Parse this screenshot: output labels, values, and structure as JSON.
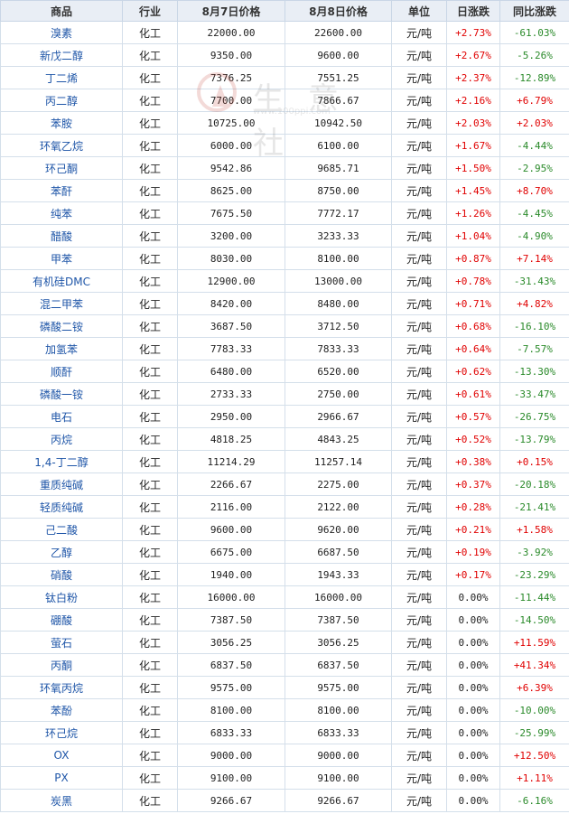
{
  "table": {
    "headers": [
      "商品",
      "行业",
      "8月7日价格",
      "8月8日价格",
      "单位",
      "日涨跌",
      "同比涨跌"
    ],
    "rows": [
      [
        "溴素",
        "化工",
        "22000.00",
        "22600.00",
        "元/吨",
        "+2.73%",
        "-61.03%"
      ],
      [
        "新戊二醇",
        "化工",
        "9350.00",
        "9600.00",
        "元/吨",
        "+2.67%",
        "-5.26%"
      ],
      [
        "丁二烯",
        "化工",
        "7376.25",
        "7551.25",
        "元/吨",
        "+2.37%",
        "-12.89%"
      ],
      [
        "丙二醇",
        "化工",
        "7700.00",
        "7866.67",
        "元/吨",
        "+2.16%",
        "+6.79%"
      ],
      [
        "苯胺",
        "化工",
        "10725.00",
        "10942.50",
        "元/吨",
        "+2.03%",
        "+2.03%"
      ],
      [
        "环氧乙烷",
        "化工",
        "6000.00",
        "6100.00",
        "元/吨",
        "+1.67%",
        "-4.44%"
      ],
      [
        "环己酮",
        "化工",
        "9542.86",
        "9685.71",
        "元/吨",
        "+1.50%",
        "-2.95%"
      ],
      [
        "苯酐",
        "化工",
        "8625.00",
        "8750.00",
        "元/吨",
        "+1.45%",
        "+8.70%"
      ],
      [
        "纯苯",
        "化工",
        "7675.50",
        "7772.17",
        "元/吨",
        "+1.26%",
        "-4.45%"
      ],
      [
        "醋酸",
        "化工",
        "3200.00",
        "3233.33",
        "元/吨",
        "+1.04%",
        "-4.90%"
      ],
      [
        "甲苯",
        "化工",
        "8030.00",
        "8100.00",
        "元/吨",
        "+0.87%",
        "+7.14%"
      ],
      [
        "有机硅DMC",
        "化工",
        "12900.00",
        "13000.00",
        "元/吨",
        "+0.78%",
        "-31.43%"
      ],
      [
        "混二甲苯",
        "化工",
        "8420.00",
        "8480.00",
        "元/吨",
        "+0.71%",
        "+4.82%"
      ],
      [
        "磷酸二铵",
        "化工",
        "3687.50",
        "3712.50",
        "元/吨",
        "+0.68%",
        "-16.10%"
      ],
      [
        "加氢苯",
        "化工",
        "7783.33",
        "7833.33",
        "元/吨",
        "+0.64%",
        "-7.57%"
      ],
      [
        "顺酐",
        "化工",
        "6480.00",
        "6520.00",
        "元/吨",
        "+0.62%",
        "-13.30%"
      ],
      [
        "磷酸一铵",
        "化工",
        "2733.33",
        "2750.00",
        "元/吨",
        "+0.61%",
        "-33.47%"
      ],
      [
        "电石",
        "化工",
        "2950.00",
        "2966.67",
        "元/吨",
        "+0.57%",
        "-26.75%"
      ],
      [
        "丙烷",
        "化工",
        "4818.25",
        "4843.25",
        "元/吨",
        "+0.52%",
        "-13.79%"
      ],
      [
        "1,4-丁二醇",
        "化工",
        "11214.29",
        "11257.14",
        "元/吨",
        "+0.38%",
        "+0.15%"
      ],
      [
        "重质纯碱",
        "化工",
        "2266.67",
        "2275.00",
        "元/吨",
        "+0.37%",
        "-20.18%"
      ],
      [
        "轻质纯碱",
        "化工",
        "2116.00",
        "2122.00",
        "元/吨",
        "+0.28%",
        "-21.41%"
      ],
      [
        "己二酸",
        "化工",
        "9600.00",
        "9620.00",
        "元/吨",
        "+0.21%",
        "+1.58%"
      ],
      [
        "乙醇",
        "化工",
        "6675.00",
        "6687.50",
        "元/吨",
        "+0.19%",
        "-3.92%"
      ],
      [
        "硝酸",
        "化工",
        "1940.00",
        "1943.33",
        "元/吨",
        "+0.17%",
        "-23.29%"
      ],
      [
        "钛白粉",
        "化工",
        "16000.00",
        "16000.00",
        "元/吨",
        "0.00%",
        "-11.44%"
      ],
      [
        "硼酸",
        "化工",
        "7387.50",
        "7387.50",
        "元/吨",
        "0.00%",
        "-14.50%"
      ],
      [
        "萤石",
        "化工",
        "3056.25",
        "3056.25",
        "元/吨",
        "0.00%",
        "+11.59%"
      ],
      [
        "丙酮",
        "化工",
        "6837.50",
        "6837.50",
        "元/吨",
        "0.00%",
        "+41.34%"
      ],
      [
        "环氧丙烷",
        "化工",
        "9575.00",
        "9575.00",
        "元/吨",
        "0.00%",
        "+6.39%"
      ],
      [
        "苯酚",
        "化工",
        "8100.00",
        "8100.00",
        "元/吨",
        "0.00%",
        "-10.00%"
      ],
      [
        "环己烷",
        "化工",
        "6833.33",
        "6833.33",
        "元/吨",
        "0.00%",
        "-25.99%"
      ],
      [
        "OX",
        "化工",
        "9000.00",
        "9000.00",
        "元/吨",
        "0.00%",
        "+12.50%"
      ],
      [
        "PX",
        "化工",
        "9100.00",
        "9100.00",
        "元/吨",
        "0.00%",
        "+1.11%"
      ],
      [
        "炭黑",
        "化工",
        "9266.67",
        "9266.67",
        "元/吨",
        "0.00%",
        "-6.16%"
      ]
    ]
  },
  "watermark": {
    "text": "生 意 社",
    "url": "www.100ppi.com"
  },
  "colors": {
    "up": "#e00000",
    "down": "#2a8a2a",
    "link": "#1f56a8",
    "header_bg": "#e9eef5"
  }
}
